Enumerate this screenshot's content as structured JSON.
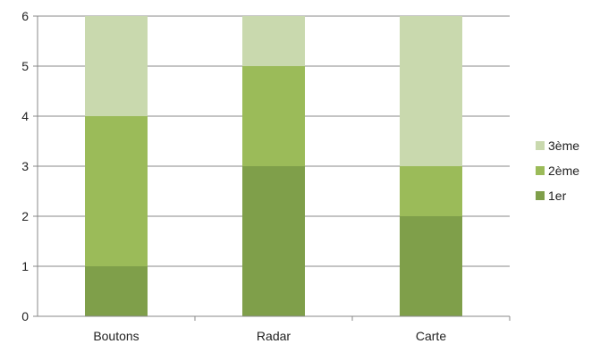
{
  "chart_data": {
    "type": "bar",
    "stacked": true,
    "categories": [
      "Boutons",
      "Radar",
      "Carte"
    ],
    "series": [
      {
        "name": "1er",
        "values": [
          1,
          3,
          2
        ],
        "color": "#7f9f4a"
      },
      {
        "name": "2ème",
        "values": [
          3,
          2,
          1
        ],
        "color": "#9bbb59"
      },
      {
        "name": "3ème",
        "values": [
          2,
          1,
          3
        ],
        "color": "#c9d9ae"
      }
    ],
    "ylim": [
      0,
      6
    ],
    "yticks": [
      "0",
      "1",
      "2",
      "3",
      "4",
      "5",
      "6"
    ],
    "grid": true,
    "legend_position": "right",
    "legend_order": [
      "3ème",
      "2ème",
      "1er"
    ]
  }
}
